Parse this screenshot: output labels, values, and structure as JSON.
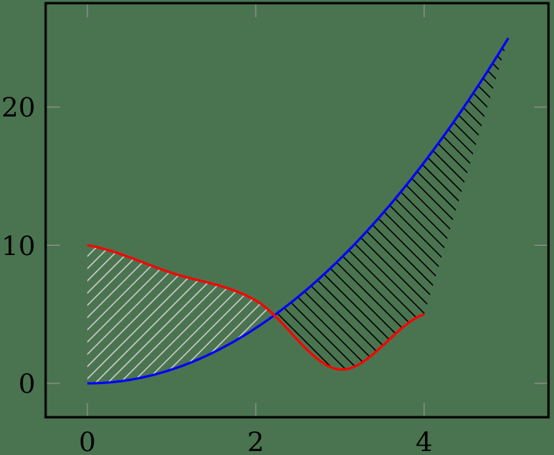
{
  "chart_data": {
    "type": "line",
    "title": "",
    "xlabel": "",
    "ylabel": "",
    "xlim": [
      -0.5,
      5.5
    ],
    "ylim": [
      -2.5,
      27.5
    ],
    "xticks": [
      0,
      2,
      4
    ],
    "yticks": [
      0,
      10,
      20
    ],
    "grid": false,
    "legend": null,
    "background_color": "#4a7450",
    "series": [
      {
        "name": "blue curve (y = x^2)",
        "color": "#0000ff",
        "x": [
          0,
          0.5,
          1,
          1.5,
          2,
          2.5,
          3,
          3.5,
          4,
          4.5,
          5
        ],
        "y": [
          0,
          0.25,
          1,
          2.25,
          4,
          6.25,
          9,
          12.25,
          16,
          20.25,
          25
        ]
      },
      {
        "name": "red curve",
        "color": "#ff0000",
        "x": [
          0,
          1,
          2,
          3,
          4
        ],
        "y": [
          10,
          8,
          6,
          1,
          5
        ]
      }
    ],
    "fills": [
      {
        "between": [
          "red curve",
          "blue curve"
        ],
        "where": "red above blue",
        "x_range": [
          0,
          2.22
        ],
        "pattern": "north-east lines",
        "pattern_color": "#cccccc"
      },
      {
        "between": [
          "blue curve",
          "red curve"
        ],
        "where": "blue above red",
        "x_range": [
          2.22,
          5
        ],
        "pattern": "north-west lines",
        "pattern_color": "#000000"
      }
    ]
  },
  "axes": {
    "x_tick_labels": [
      "0",
      "2",
      "4"
    ],
    "y_tick_labels": [
      "0",
      "10",
      "20"
    ]
  }
}
